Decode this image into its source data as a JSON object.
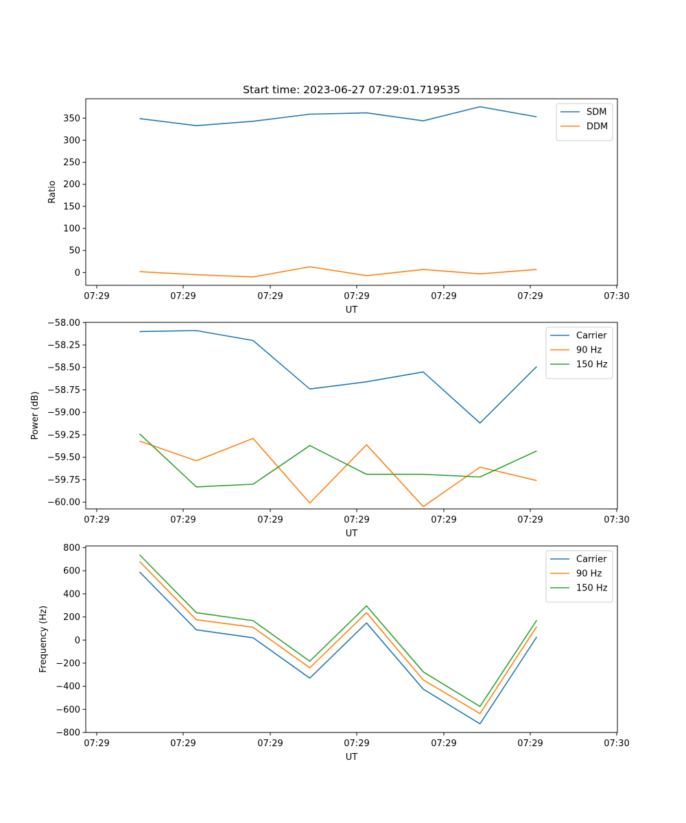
{
  "chart_data": [
    {
      "type": "line",
      "title": "Start time: 2023-06-27 07:29:01.719535",
      "xlabel": "UT",
      "ylabel": "Ratio",
      "x_tick_labels": [
        "07:29",
        "07:29",
        "07:29",
        "07:29",
        "07:29",
        "07:29",
        "07:30"
      ],
      "y_ticks": [
        0,
        50,
        100,
        150,
        200,
        250,
        300,
        350
      ],
      "ylim": [
        -29,
        394
      ],
      "legend_position": "upper right",
      "series": [
        {
          "name": "SDM",
          "color": "#1f77b4",
          "values": [
            349,
            333,
            343,
            359,
            362,
            344,
            376,
            353
          ]
        },
        {
          "name": "DDM",
          "color": "#ff7f0e",
          "values": [
            2,
            -5,
            -10,
            13,
            -7,
            7,
            -3,
            7
          ]
        }
      ]
    },
    {
      "type": "line",
      "title": "",
      "xlabel": "UT",
      "ylabel": "Power (dB)",
      "x_tick_labels": [
        "07:29",
        "07:29",
        "07:29",
        "07:29",
        "07:29",
        "07:29",
        "07:30"
      ],
      "y_ticks": [
        -60.0,
        -59.75,
        -59.5,
        -59.25,
        -59.0,
        -58.75,
        -58.5,
        -58.25,
        -58.0
      ],
      "y_tick_labels": [
        "−60.00",
        "−59.75",
        "−59.50",
        "−59.25",
        "−59.00",
        "−58.75",
        "−58.50",
        "−58.25",
        "−58.00"
      ],
      "ylim": [
        -60.075,
        -57.998
      ],
      "legend_position": "upper right",
      "series": [
        {
          "name": "Carrier",
          "color": "#1f77b4",
          "values": [
            -58.1,
            -58.09,
            -58.2,
            -58.74,
            -58.66,
            -58.55,
            -59.12,
            -58.49
          ]
        },
        {
          "name": "90 Hz",
          "color": "#ff7f0e",
          "values": [
            -59.32,
            -59.54,
            -59.29,
            -60.01,
            -59.36,
            -60.05,
            -59.61,
            -59.76
          ]
        },
        {
          "name": "150 Hz",
          "color": "#2ca02c",
          "values": [
            -59.24,
            -59.83,
            -59.8,
            -59.37,
            -59.69,
            -59.69,
            -59.72,
            -59.43
          ]
        }
      ]
    },
    {
      "type": "line",
      "title": "",
      "xlabel": "UT",
      "ylabel": "Frequency (Hz)",
      "x_tick_labels": [
        "07:29",
        "07:29",
        "07:29",
        "07:29",
        "07:29",
        "07:29",
        "07:30"
      ],
      "y_ticks": [
        -800,
        -600,
        -400,
        -200,
        0,
        200,
        400,
        600,
        800
      ],
      "y_tick_labels": [
        "−800",
        "−600",
        "−400",
        "−200",
        "0",
        "200",
        "400",
        "600",
        "800"
      ],
      "ylim": [
        -800,
        815
      ],
      "legend_position": "upper right",
      "series": [
        {
          "name": "Carrier",
          "color": "#1f77b4",
          "values": [
            590,
            89,
            20,
            -330,
            148,
            -425,
            -725,
            27
          ]
        },
        {
          "name": "90 Hz",
          "color": "#ff7f0e",
          "values": [
            680,
            176,
            111,
            -240,
            237,
            -345,
            -636,
            117
          ]
        },
        {
          "name": "150 Hz",
          "color": "#2ca02c",
          "values": [
            738,
            237,
            168,
            -183,
            296,
            -276,
            -575,
            172
          ]
        }
      ]
    }
  ]
}
